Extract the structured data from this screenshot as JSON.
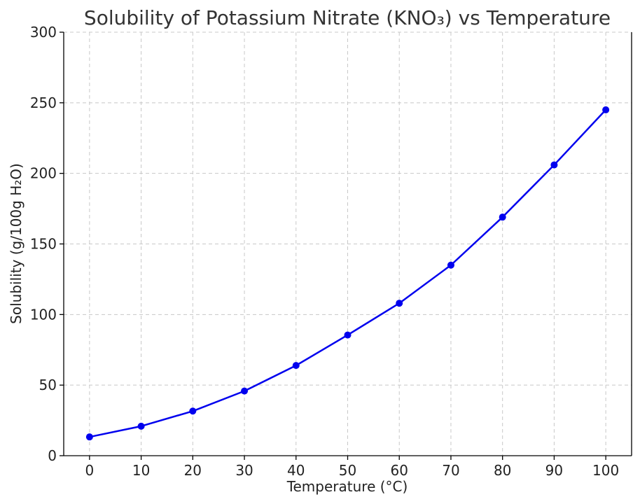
{
  "chart_data": {
    "type": "line",
    "title": "Solubility of Potassium Nitrate (KNO₃) vs Temperature",
    "xlabel": "Temperature (°C)",
    "ylabel": "Solubility (g/100g H₂O)",
    "x": [
      0,
      10,
      20,
      30,
      40,
      50,
      60,
      70,
      80,
      90,
      100
    ],
    "series": [
      {
        "values": [
          13.3,
          20.9,
          31.6,
          45.8,
          63.9,
          85.5,
          108,
          135,
          169,
          206,
          245
        ]
      }
    ],
    "xlim": [
      -5,
      105
    ],
    "ylim": [
      0,
      300
    ],
    "xticks": [
      0,
      10,
      20,
      30,
      40,
      50,
      60,
      70,
      80,
      90,
      100
    ],
    "yticks": [
      0,
      50,
      100,
      150,
      200,
      250,
      300
    ],
    "grid": true,
    "line_color": "#0000ee",
    "marker": "circle"
  }
}
